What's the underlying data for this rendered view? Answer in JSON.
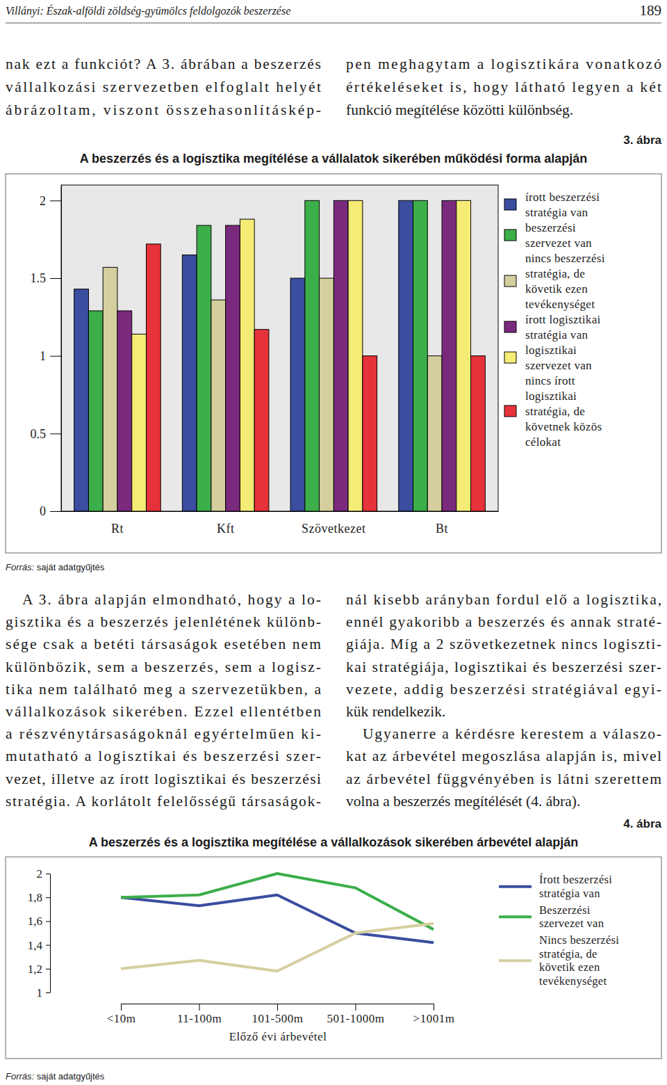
{
  "header": {
    "running_title": "Villányi: Észak-alföldi zöldség-gyümölcs feldolgozók beszerzése",
    "page_number": "189"
  },
  "text_top": {
    "left": [
      "nak ezt a funkciót? A 3. ábrában a beszerzés",
      "vállalkozási szervezetben elfoglalt helyét",
      "ábrázoltam, viszont összehasonlításkép-"
    ],
    "right": [
      "pen meghagytam a logisztikára vonatkozó",
      "értékeléseket is, hogy látható legyen a két",
      "funkció megítélése közötti különbség."
    ]
  },
  "text_middle": {
    "left": [
      "A 3. ábra alapján elmondható, hogy a lo-",
      "gisztika és a beszerzés jelenlétének különb-",
      "sége csak a betéti társaságok esetében nem",
      "különbözik, sem a beszerzés, sem a logisz-",
      "tika nem található meg a szervezetükben, a",
      "vállalkozások sikerében. Ezzel ellentétben",
      "a részvénytársaságoknál egyértelműen ki-",
      "mutatható a logisztikai és beszerzési szer-",
      "vezet, illetve az írott logisztikai és beszerzési",
      "stratégia. A korlátolt felelősségű társaságok-"
    ],
    "right": [
      "nál kisebb arányban fordul elő a logisztika,",
      "ennél gyakoribb a beszerzés és annak straté-",
      "giája. Míg a 2 szövetkezetnek nincs logiszti-",
      "kai stratégiája, logisztikai és beszerzési szer-",
      "vezete, addig beszerzési stratégiával egyi-",
      "kük rendelkezik.",
      "Ugyanerre a kérdésre kerestem a válaszo-",
      "kat az árbevétel megoszlása alapján is, mivel",
      "az árbevétel függvényében is látni szerettem",
      "volna a beszerzés megítélését (4. ábra)."
    ]
  },
  "chart_data": [
    {
      "type": "bar",
      "annotations": [
        "3. ábra"
      ],
      "title": "A beszerzés és a logisztika megítélése a vállalatok sikerében működési forma alapján",
      "source": "Forrás: saját adatgyűjtés",
      "categories": [
        "Rt",
        "Kft",
        "Szövetkezet",
        "Bt"
      ],
      "series": [
        {
          "name": "írott beszerzési stratégia van",
          "color": "#3a4d9f",
          "values": [
            1.43,
            1.65,
            1.5,
            2
          ]
        },
        {
          "name": "beszerzési szervezet van",
          "color": "#3cae4a",
          "values": [
            1.29,
            1.84,
            2,
            2
          ]
        },
        {
          "name": "nincs beszerzési stratégia, de követik ezen tevékenységet",
          "color": "#d5cf9f",
          "values": [
            1.57,
            1.36,
            1.5,
            1
          ]
        },
        {
          "name": "írott logisztikai stratégia van",
          "color": "#7a2a7d",
          "values": [
            1.29,
            1.84,
            2,
            2
          ]
        },
        {
          "name": "logisztikai szervezet van",
          "color": "#f5ec76",
          "values": [
            1.14,
            1.88,
            2,
            2
          ]
        },
        {
          "name": "nincs írott logisztikai stratégia, de követnek közös célokat",
          "color": "#e6323b",
          "values": [
            1.72,
            1.17,
            1,
            1
          ]
        }
      ],
      "ylim": [
        0,
        2.1
      ],
      "yticks": [
        0,
        0.5,
        1,
        1.5,
        2
      ],
      "legend": "right"
    },
    {
      "type": "line",
      "annotations": [
        "4. ábra"
      ],
      "title": "A beszerzés és a logisztika megítélése a vállalkozások sikerében árbevétel alapján",
      "source": "Forrás: saját adatgyűjtés",
      "xlabel": "Előző évi árbevétel",
      "categories": [
        "<10m",
        "11-100m",
        "101-500m",
        "501-1000m",
        ">1001m"
      ],
      "series": [
        {
          "name": "Írott beszerzési stratégia van",
          "color": "#3a4d9f",
          "values": [
            1.8,
            1.73,
            1.82,
            1.5,
            1.42
          ]
        },
        {
          "name": "Beszerzési szervezet van",
          "color": "#3cae4a",
          "values": [
            1.8,
            1.82,
            2.0,
            1.88,
            1.53
          ]
        },
        {
          "name": "Nincs beszerzési stratégia, de követik ezen tevékenységet",
          "color": "#d5cf9f",
          "values": [
            1.2,
            1.27,
            1.18,
            1.5,
            1.58
          ]
        }
      ],
      "ylim": [
        1,
        2
      ],
      "yticks": [
        {
          "value": 1,
          "label": "1"
        },
        {
          "value": 1.2,
          "label": "1,2"
        },
        {
          "value": 1.4,
          "label": "1,4"
        },
        {
          "value": 1.6,
          "label": "1,6"
        },
        {
          "value": 1.8,
          "label": "1,8"
        },
        {
          "value": 2,
          "label": "2"
        }
      ],
      "legend": "right"
    }
  ]
}
